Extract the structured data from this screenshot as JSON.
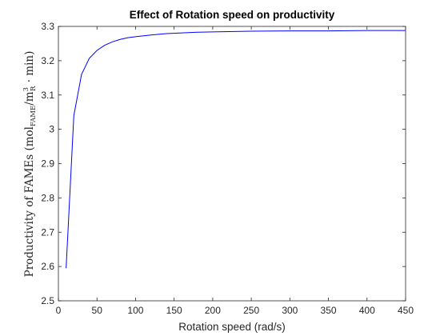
{
  "chart_data": {
    "type": "line",
    "title": "Effect of Rotation speed on productivity",
    "xlabel": "Rotation speed (rad/s)",
    "ylabel": {
      "prefix": "Productivity of FAMEs (mol",
      "sub1": "FAME",
      "mid": "/m",
      "sup": "3",
      "sub2": "R",
      "suffix": " · min)"
    },
    "xlim": [
      0,
      450
    ],
    "ylim": [
      2.5,
      3.3
    ],
    "xticks": [
      0,
      50,
      100,
      150,
      200,
      250,
      300,
      350,
      400,
      450
    ],
    "yticks": [
      2.5,
      2.6,
      2.7,
      2.8,
      2.9,
      3.0,
      3.1,
      3.2,
      3.3
    ],
    "ytick_labels": [
      "2.5",
      "2.6",
      "2.7",
      "2.8",
      "2.9",
      "3",
      "3.1",
      "3.2",
      "3.3"
    ],
    "grid": false,
    "series": [
      {
        "color": "#0000ff",
        "x": [
          10,
          20,
          30,
          40,
          50,
          60,
          70,
          80,
          90,
          100,
          120,
          140,
          160,
          180,
          200,
          250,
          300,
          350,
          400,
          450
        ],
        "y": [
          2.595,
          3.04,
          3.16,
          3.207,
          3.23,
          3.245,
          3.255,
          3.262,
          3.267,
          3.27,
          3.275,
          3.279,
          3.281,
          3.283,
          3.284,
          3.286,
          3.287,
          3.287,
          3.288,
          3.288
        ]
      }
    ]
  }
}
